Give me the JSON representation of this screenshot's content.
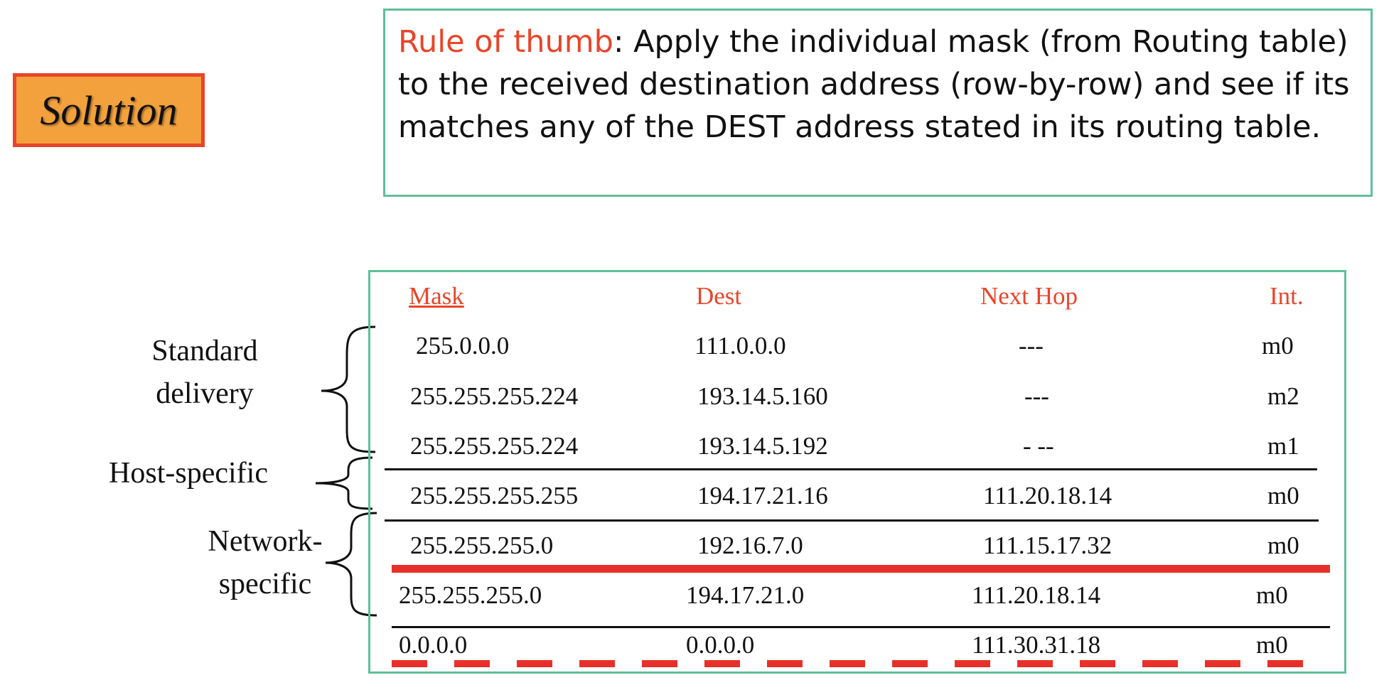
{
  "solution_label": "Solution",
  "rule": {
    "key": "Rule of thumb",
    "text": ": Apply the individual mask (from Routing table) to the received destination address (row-by-row) and see if its matches any of the DEST address stated in its routing table."
  },
  "table": {
    "headers": {
      "mask": "Mask",
      "dest": "Dest",
      "next_hop": "Next Hop",
      "int": "Int."
    },
    "rows": [
      {
        "mask": "255.0.0.0",
        "dest": "111.0.0.0",
        "next_hop": "---",
        "int": "m0"
      },
      {
        "mask": "255.255.255.224",
        "dest": "193.14.5.160",
        "next_hop": "---",
        "int": "m2"
      },
      {
        "mask": "255.255.255.224",
        "dest": "193.14.5.192",
        "next_hop": "- --",
        "int": "m1"
      },
      {
        "mask": "255.255.255.255",
        "dest": "194.17.21.16",
        "next_hop": "111.20.18.14",
        "int": "m0"
      },
      {
        "mask": "255.255.255.0",
        "dest": "192.16.7.0",
        "next_hop": "111.15.17.32",
        "int": "m0"
      },
      {
        "mask": "255.255.255.0",
        "dest": "194.17.21.0",
        "next_hop": "111.20.18.14",
        "int": "m0"
      },
      {
        "mask": "0.0.0.0",
        "dest": "0.0.0.0",
        "next_hop": "111.30.31.18",
        "int": "m0"
      }
    ]
  },
  "groups": {
    "standard": {
      "line1": "Standard",
      "line2": "delivery"
    },
    "host": {
      "line1": "Host-specific"
    },
    "network": {
      "line1": "Network-",
      "line2": "specific"
    }
  },
  "colors": {
    "accent_red": "#e8452a",
    "box_border": "#5fbf9a",
    "solution_fill": "#f3a13c"
  }
}
